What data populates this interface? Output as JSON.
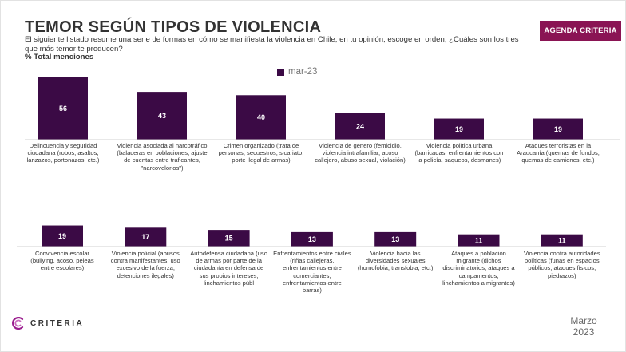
{
  "header": {
    "title": "TEMOR SEGÚN TIPOS DE VIOLENCIA",
    "subtitle": " El siguiente listado resume una serie de formas en cómo se manifiesta la violencia en Chile, en tu opinión, escoge en orden, ¿Cuáles son los tres que más temor te producen?",
    "measure": "% Total menciones",
    "badge": "AGENDA CRITERIA"
  },
  "legend": {
    "label": "mar-23"
  },
  "colors": {
    "bar": "#3b0a45",
    "badge": "#8a1454",
    "logo": "#9b1f8f"
  },
  "chart_data": {
    "type": "bar",
    "title": "TEMOR SEGÚN TIPOS DE VIOLENCIA",
    "series_name": "mar-23",
    "unit": "% Total menciones",
    "panels": [
      {
        "categories": [
          "Delincuencia y seguridad ciudadana (robos, asaltos, lanzazos, portonazos, etc.)",
          "Violencia asociada al narcotráfico (balaceras en poblaciones, ajuste de cuentas entre traficantes, \"narcovelorios\")",
          "Crimen organizado (trata de personas, secuestros, sicariato, porte ilegal de armas)",
          "Violencia de género (femicidio, violencia intrafamiliar, acoso callejero, abuso sexual, violación)",
          "Violencia política urbana (barricadas, enfrentamientos con la policía, saqueos, desmanes)",
          "Ataques terroristas en la Araucanía (quemas de fundos, quemas de camiones, etc.)"
        ],
        "values": [
          56,
          43,
          40,
          24,
          19,
          19
        ]
      },
      {
        "categories": [
          "Convivencia escolar (bullying, acoso, peleas entre escolares)",
          "Violencia policial (abusos contra manifestantes, uso excesivo de la fuerza, detenciones ilegales)",
          "Autodefensa ciudadana (uso de armas por parte de la ciudadanía en defensa de sus propios intereses, linchamientos públ",
          "Enfrentamientos entre civiles (riñas callejeras, enfrentamientos entre comerciantes, enfrentamientos entre barras)",
          "Violencia hacia las diversidades sexuales (homofobia, transfobia, etc.)",
          "Ataques a población migrante (dichos discriminatorios, ataques a campamentos, linchamientos a migrantes)",
          "Violencia contra autoridades políticas (funas en espacios públicos, ataques físicos, piedrazos)"
        ],
        "values": [
          19,
          17,
          15,
          13,
          13,
          11,
          11
        ]
      }
    ]
  },
  "footer": {
    "brand": "CRITERIA",
    "month": "Marzo",
    "year": "2023"
  }
}
